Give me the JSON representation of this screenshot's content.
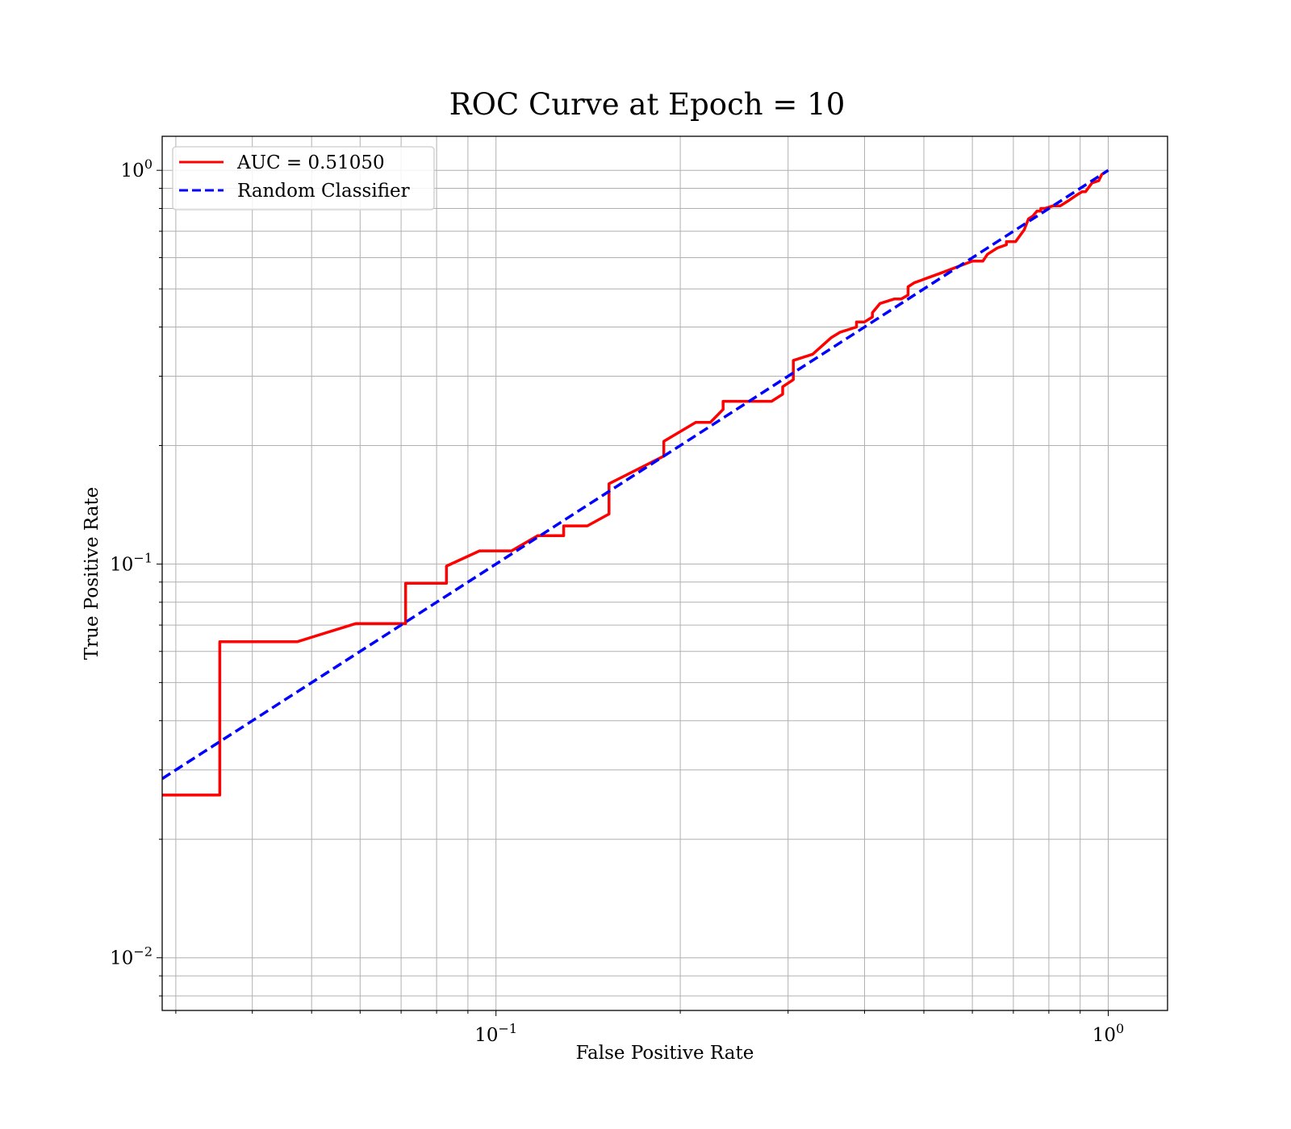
{
  "chart_data": {
    "type": "line",
    "title": "ROC Curve at Epoch = 10",
    "xlabel": "False Positive Rate",
    "ylabel": "True Positive Rate",
    "xscale": "log",
    "yscale": "log",
    "xlim": [
      0.0285,
      1.25
    ],
    "ylim": [
      0.00735,
      1.22
    ],
    "grid": true,
    "legend_position": "upper left",
    "x_ticks": [
      {
        "value": 0.1,
        "label": "10",
        "exp": "−1"
      },
      {
        "value": 1,
        "label": "10",
        "exp": "0"
      }
    ],
    "y_ticks": [
      {
        "value": 0.01,
        "label": "10",
        "exp": "−2"
      },
      {
        "value": 0.1,
        "label": "10",
        "exp": "−1"
      },
      {
        "value": 1,
        "label": "10",
        "exp": "0"
      }
    ],
    "series": [
      {
        "name": "AUC = 0.51050",
        "color": "#ff0000",
        "dash": "solid",
        "x": [
          0.0285,
          0.0354,
          0.0354,
          0.0474,
          0.059,
          0.0712,
          0.0712,
          0.083,
          0.083,
          0.094,
          0.106,
          0.117,
          0.129,
          0.129,
          0.141,
          0.153,
          0.153,
          0.188,
          0.188,
          0.212,
          0.224,
          0.235,
          0.235,
          0.282,
          0.294,
          0.294,
          0.306,
          0.306,
          0.329,
          0.353,
          0.365,
          0.388,
          0.388,
          0.4,
          0.412,
          0.412,
          0.424,
          0.447,
          0.459,
          0.471,
          0.471,
          0.482,
          0.541,
          0.6,
          0.624,
          0.635,
          0.659,
          0.682,
          0.682,
          0.706,
          0.729,
          0.741,
          0.753,
          0.765,
          0.776,
          0.776,
          0.788,
          0.812,
          0.835,
          0.859,
          0.882,
          0.906,
          0.918,
          0.941,
          0.965,
          0.976,
          1.0
        ],
        "y": [
          0.0259,
          0.0259,
          0.0635,
          0.0635,
          0.0706,
          0.0706,
          0.0894,
          0.0894,
          0.0988,
          0.108,
          0.108,
          0.118,
          0.118,
          0.125,
          0.125,
          0.134,
          0.16,
          0.188,
          0.205,
          0.229,
          0.229,
          0.247,
          0.259,
          0.259,
          0.27,
          0.282,
          0.294,
          0.329,
          0.341,
          0.376,
          0.388,
          0.4,
          0.412,
          0.412,
          0.424,
          0.435,
          0.459,
          0.471,
          0.471,
          0.482,
          0.506,
          0.518,
          0.553,
          0.588,
          0.588,
          0.612,
          0.635,
          0.647,
          0.659,
          0.659,
          0.706,
          0.753,
          0.765,
          0.788,
          0.788,
          0.8,
          0.8,
          0.812,
          0.812,
          0.835,
          0.859,
          0.882,
          0.882,
          0.929,
          0.941,
          0.976,
          1.0
        ]
      },
      {
        "name": "Random Classifier",
        "color": "#0000ff",
        "dash": "dashed",
        "x": [
          0.0285,
          1.0
        ],
        "y": [
          0.0285,
          1.0
        ]
      }
    ]
  }
}
